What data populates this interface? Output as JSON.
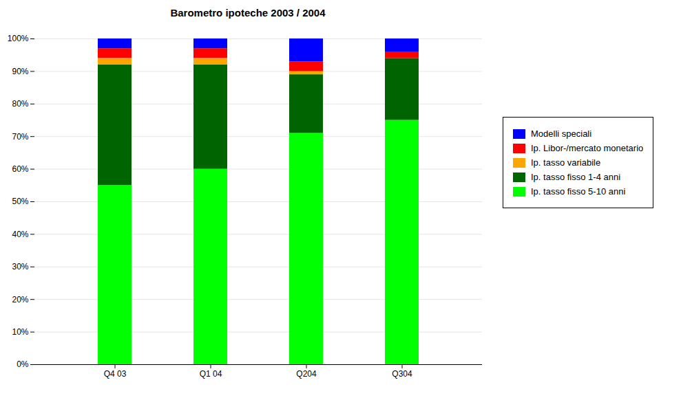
{
  "chart_data": {
    "type": "bar",
    "stacked": true,
    "title": "Barometro ipoteche 2003 / 2004",
    "categories": [
      "Q4 03",
      "Q1 04",
      "Q204",
      "Q304"
    ],
    "series": [
      {
        "name": "Ip. tasso fisso 5-10 anni",
        "color": "#00FF00",
        "values": [
          55,
          60,
          71,
          75
        ]
      },
      {
        "name": "Ip. tasso fisso 1-4 anni",
        "color": "#006400",
        "values": [
          37,
          32,
          18,
          19
        ]
      },
      {
        "name": "Ip. tasso variabile",
        "color": "#FFA500",
        "values": [
          2,
          2,
          1,
          0
        ]
      },
      {
        "name": "Ip. Libor-/mercato monetario",
        "color": "#FF0000",
        "values": [
          3,
          3,
          3,
          2
        ]
      },
      {
        "name": "Modelli speciali",
        "color": "#0000FF",
        "values": [
          3,
          3,
          7,
          4
        ]
      }
    ],
    "ylim": [
      0,
      100
    ],
    "yticks": [
      {
        "value": 0,
        "label": "0%"
      },
      {
        "value": 10,
        "label": "10%"
      },
      {
        "value": 20,
        "label": "20%"
      },
      {
        "value": 30,
        "label": "30%"
      },
      {
        "value": 40,
        "label": "40%"
      },
      {
        "value": 50,
        "label": "50%"
      },
      {
        "value": 60,
        "label": "60%"
      },
      {
        "value": 70,
        "label": "70%"
      },
      {
        "value": 80,
        "label": "80%"
      },
      {
        "value": 90,
        "label": "90%"
      },
      {
        "value": 100,
        "label": "100%"
      }
    ],
    "grid": true,
    "legend": "right"
  }
}
